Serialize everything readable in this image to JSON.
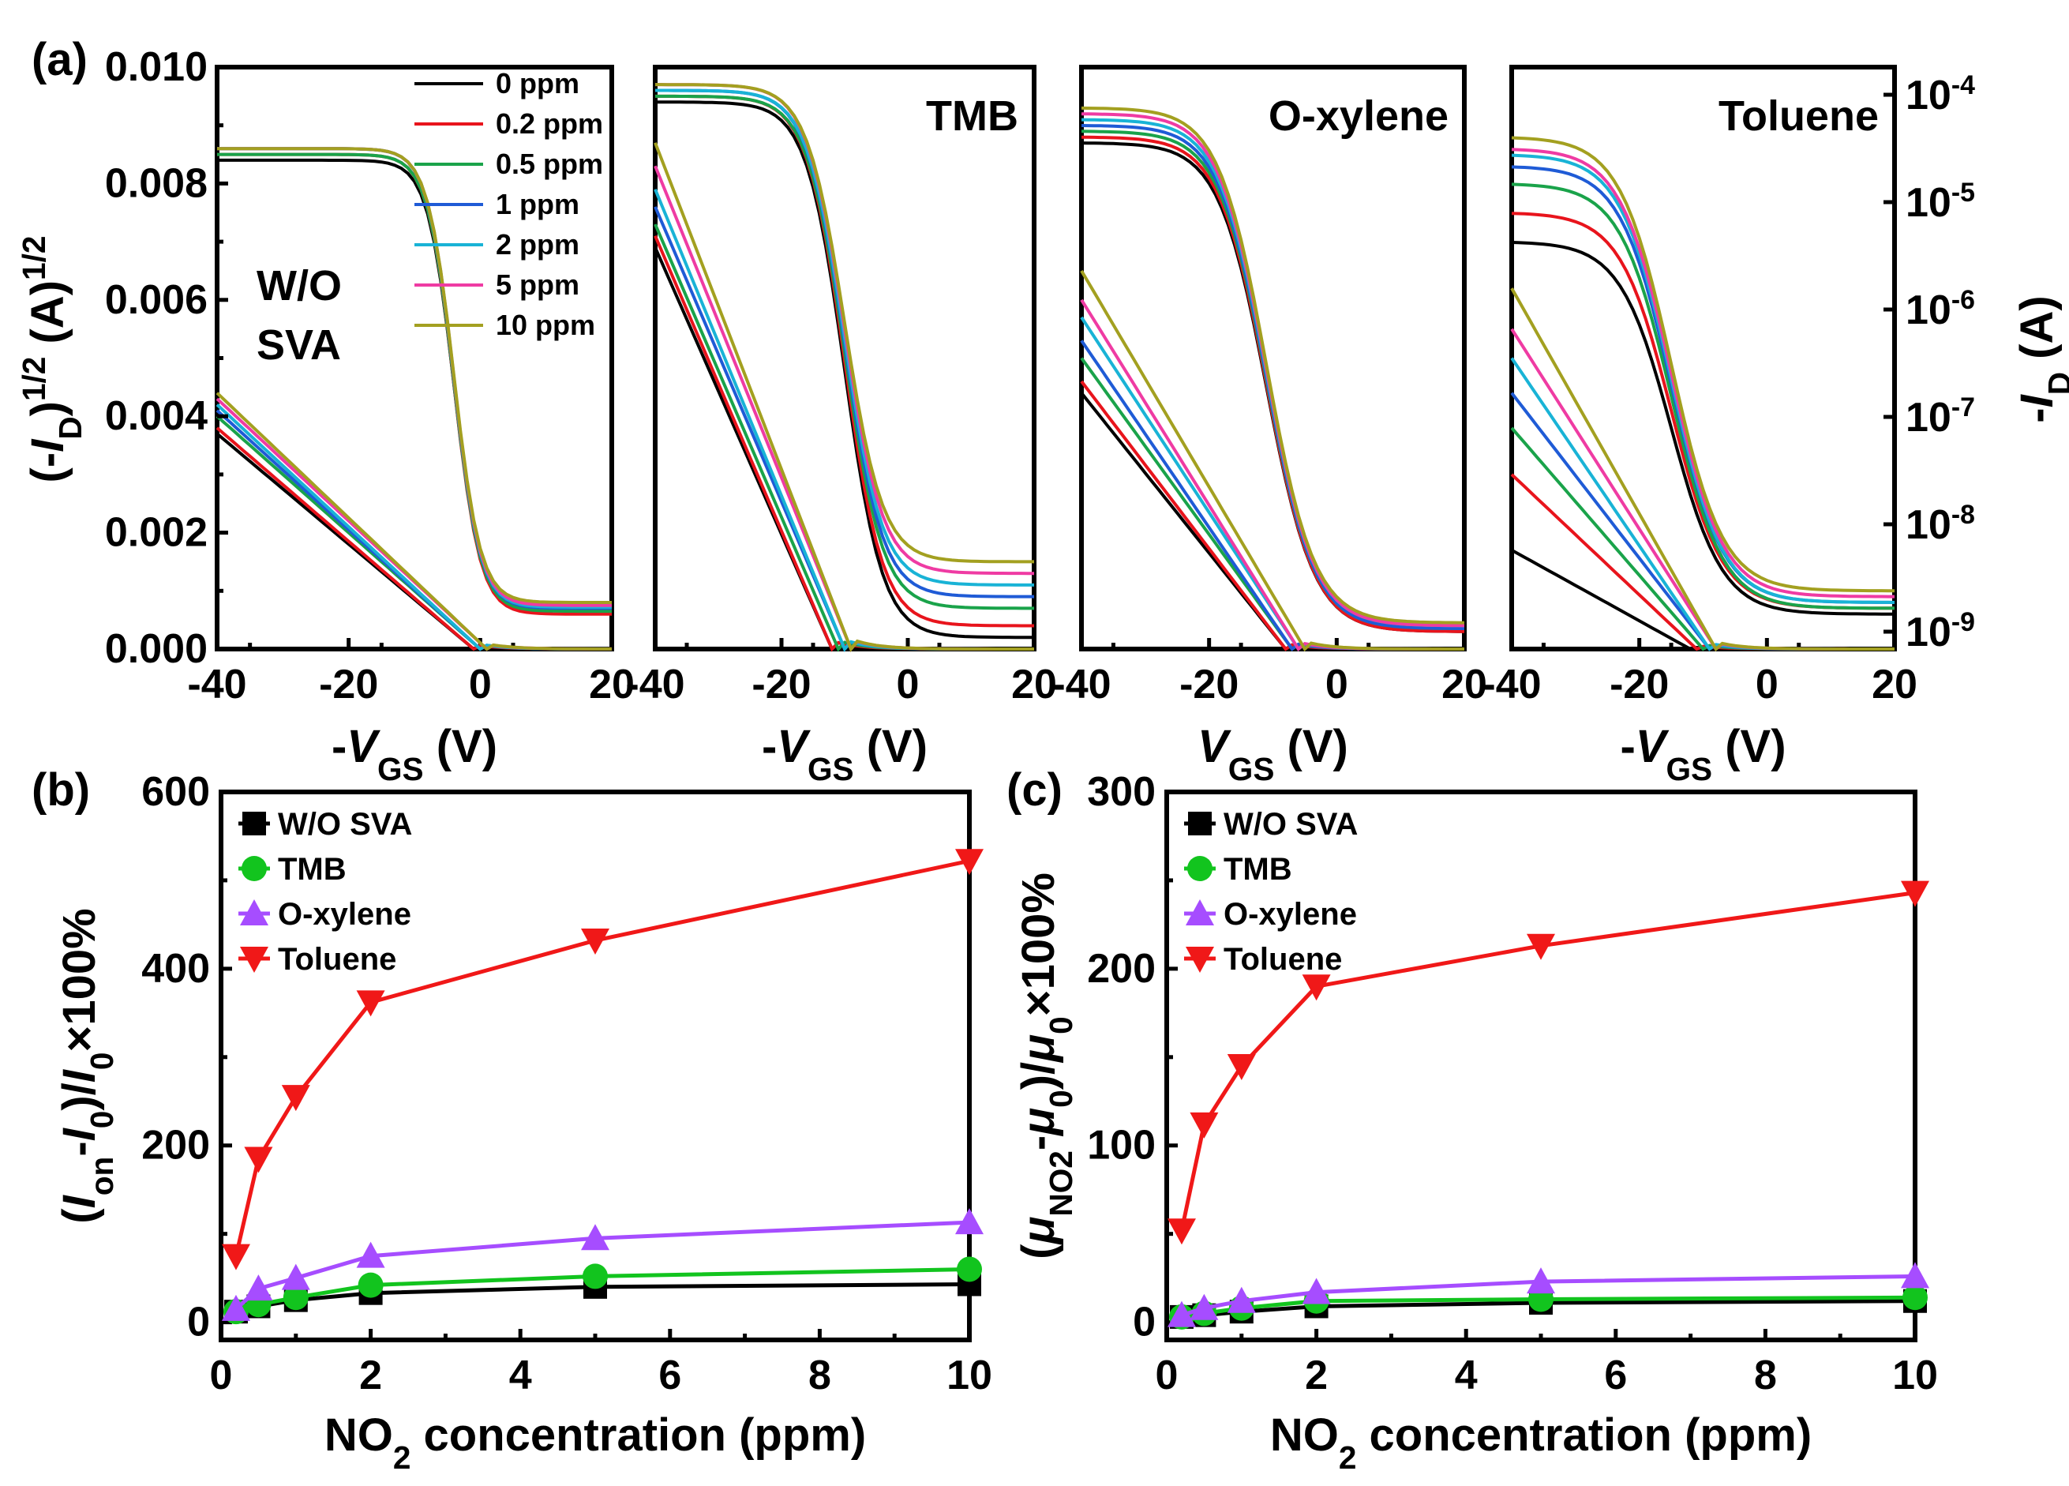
{
  "panel_labels": {
    "a": "(a)",
    "b": "(b)",
    "c": "(c)"
  },
  "colors": {
    "0ppm": "#000000",
    "0.2ppm": "#e8141c",
    "0.5ppm": "#1aa34a",
    "1ppm": "#1f5bd6",
    "2ppm": "#19b3d6",
    "5ppm": "#ef3ba3",
    "10ppm": "#a3a020",
    "wo_sva": "#000000",
    "tmb": "#12c41e",
    "oxylene": "#a64dff",
    "toluene": "#f01818"
  },
  "chart_data": [
    {
      "id": "a",
      "type": "line",
      "panels": [
        {
          "title": "W/O\nSVA",
          "title_lines": [
            "W/O",
            "SVA"
          ],
          "xlabel_prefix": "-",
          "xlabel": "V",
          "xlabel_sub": "GS",
          "xlabel_suffix": " (V)",
          "sat_on": [
            0.0084,
            0.0085,
            0.0085,
            0.0086,
            0.0086,
            0.0086,
            0.0086
          ],
          "sat_vth": -4,
          "sat_width": 8,
          "sat_floor": [
            0.0007,
            0.0006,
            0.00065,
            0.0007,
            0.00072,
            0.00075,
            0.0008
          ],
          "log_start": [
            0.0037,
            0.0038,
            0.004,
            0.0041,
            0.0042,
            0.0043,
            0.0044
          ],
          "log_zero": [
            -1,
            -1,
            0,
            0,
            0,
            1,
            1
          ]
        },
        {
          "title": "TMB",
          "xlabel_prefix": "-",
          "xlabel": "V",
          "xlabel_sub": "GS",
          "xlabel_suffix": " (V)",
          "sat_on": [
            0.0094,
            0.0095,
            0.0095,
            0.0096,
            0.0096,
            0.0097,
            0.0097
          ],
          "sat_vth": -10,
          "sat_width": 12,
          "sat_floor": [
            0.0002,
            0.0004,
            0.0007,
            0.0009,
            0.0011,
            0.0013,
            0.0015
          ],
          "log_start": [
            0.0069,
            0.0071,
            0.0073,
            0.0076,
            0.0079,
            0.0083,
            0.0087
          ],
          "log_zero": [
            -12,
            -12,
            -11,
            -10,
            -10,
            -9,
            -9
          ]
        },
        {
          "title": "O-xylene",
          "xlabel_prefix": "",
          "xlabel": "V",
          "xlabel_sub": "GS",
          "xlabel_suffix": " (V)",
          "sat_on": [
            0.0087,
            0.0088,
            0.0089,
            0.009,
            0.0091,
            0.0092,
            0.0093
          ],
          "sat_vth": -11,
          "sat_width": 15,
          "sat_floor": [
            0.0003,
            0.0003,
            0.00035,
            0.00035,
            0.0004,
            0.0004,
            0.00045
          ],
          "log_start": [
            0.0044,
            0.0046,
            0.005,
            0.0053,
            0.0057,
            0.006,
            0.0065
          ],
          "log_zero": [
            -8,
            -8,
            -7,
            -7,
            -6,
            -6,
            -5
          ]
        },
        {
          "title": "Toluene",
          "xlabel_prefix": "-",
          "xlabel": "V",
          "xlabel_sub": "GS",
          "xlabel_suffix": " (V)",
          "sat_on": [
            0.007,
            0.0075,
            0.008,
            0.0083,
            0.0085,
            0.0086,
            0.0088
          ],
          "sat_vth": -15,
          "sat_width": 16,
          "sat_floor": [
            0.0006,
            0.0007,
            0.0007,
            0.0008,
            0.0008,
            0.0009,
            0.001
          ],
          "log_start": [
            0.0017,
            0.003,
            0.0038,
            0.0044,
            0.005,
            0.0055,
            0.0062
          ],
          "log_zero": [
            -12,
            -11,
            -10,
            -9,
            -9,
            -8,
            -8
          ]
        }
      ],
      "legend": [
        "0 ppm",
        "0.2 ppm",
        "0.5 ppm",
        "1 ppm",
        "2 ppm",
        "5 ppm",
        "10 ppm"
      ],
      "x_ticks": [
        "-40",
        "-20",
        "0",
        "20"
      ],
      "xlim": [
        -40,
        20
      ],
      "y_left_label_parts": [
        "(-",
        "I",
        "D",
        ")",
        "1/2",
        " (A)",
        "1/2"
      ],
      "y_left_ticks": [
        "0.000",
        "0.002",
        "0.004",
        "0.006",
        "0.008",
        "0.010"
      ],
      "y_left_lim": [
        0,
        0.01
      ],
      "y_right_label_parts": [
        "-",
        "I",
        "D",
        " (A)"
      ],
      "y_right_ticks": [
        {
          "base": "10",
          "exp": "-9"
        },
        {
          "base": "10",
          "exp": "-8"
        },
        {
          "base": "10",
          "exp": "-7"
        },
        {
          "base": "10",
          "exp": "-6"
        },
        {
          "base": "10",
          "exp": "-5"
        },
        {
          "base": "10",
          "exp": "-4"
        }
      ]
    },
    {
      "id": "b",
      "type": "line",
      "x": [
        0.2,
        0.5,
        1,
        2,
        5,
        10
      ],
      "xlim": [
        0,
        10
      ],
      "x_ticks": [
        "0",
        "2",
        "4",
        "6",
        "8",
        "10"
      ],
      "ylim": [
        -20,
        600
      ],
      "y_ticks": [
        "0",
        "200",
        "400",
        "600"
      ],
      "xlabel_parts": [
        "NO",
        "2",
        " concentration (ppm)"
      ],
      "ylabel_parts": [
        "(",
        "I",
        "on",
        "-",
        "I",
        "0",
        ")/",
        "I",
        "0",
        "×100%"
      ],
      "series": [
        {
          "name": "W/O SVA",
          "marker": "square",
          "values": [
            12,
            18,
            25,
            33,
            40,
            43
          ]
        },
        {
          "name": "TMB",
          "marker": "circle",
          "values": [
            12,
            20,
            28,
            42,
            52,
            60
          ]
        },
        {
          "name": "O-xylene",
          "marker": "triangle-up",
          "values": [
            15,
            38,
            50,
            75,
            95,
            113
          ]
        },
        {
          "name": "Toluene",
          "marker": "triangle-down",
          "values": [
            75,
            185,
            255,
            362,
            432,
            522
          ]
        }
      ]
    },
    {
      "id": "c",
      "type": "line",
      "x": [
        0.2,
        0.5,
        1,
        2,
        5,
        10
      ],
      "xlim": [
        0,
        10
      ],
      "x_ticks": [
        "0",
        "2",
        "4",
        "6",
        "8",
        "10"
      ],
      "ylim": [
        -10,
        300
      ],
      "y_ticks": [
        "0",
        "100",
        "200",
        "300"
      ],
      "xlabel_parts": [
        "NO",
        "2",
        " concentration (ppm)"
      ],
      "ylabel_parts": [
        "(",
        "μ",
        "NO2",
        "-",
        "μ",
        "0",
        ")/",
        "μ",
        "0",
        "×100%"
      ],
      "series": [
        {
          "name": "W/O SVA",
          "marker": "square",
          "values": [
            3,
            4,
            6,
            9,
            11,
            12
          ]
        },
        {
          "name": "TMB",
          "marker": "circle",
          "values": [
            3,
            5,
            8,
            12,
            13,
            14
          ]
        },
        {
          "name": "O-xylene",
          "marker": "triangle-up",
          "values": [
            4,
            8,
            12,
            17,
            23,
            26
          ]
        },
        {
          "name": "Toluene",
          "marker": "triangle-down",
          "values": [
            52,
            112,
            145,
            190,
            213,
            243
          ]
        }
      ]
    }
  ]
}
